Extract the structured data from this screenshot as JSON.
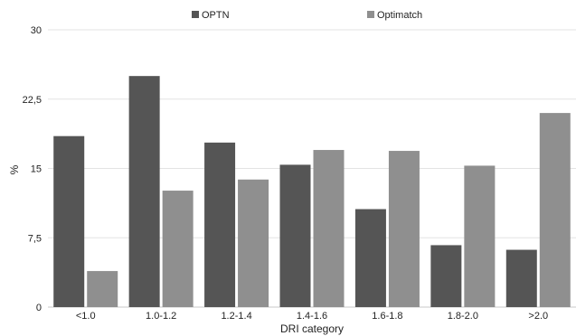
{
  "chart_data": {
    "type": "bar",
    "categories": [
      "<1.0",
      "1.0-1.2",
      "1.2-1.4",
      "1.4-1.6",
      "1.6-1.8",
      "1.8-2.0",
      ">2.0"
    ],
    "series": [
      {
        "name": "OPTN",
        "color": "#555555",
        "values": [
          18.5,
          25.0,
          17.8,
          15.4,
          10.6,
          6.7,
          6.2
        ]
      },
      {
        "name": "Optimatch",
        "color": "#8f8f8f",
        "values": [
          3.9,
          12.6,
          13.8,
          17.0,
          16.9,
          15.3,
          21.0
        ]
      }
    ],
    "xlabel": "DRI category",
    "ylabel": "%",
    "ylim": [
      0,
      30
    ],
    "yticks": [
      0,
      7.5,
      15,
      22.5,
      30
    ],
    "ytick_labels": [
      "0",
      "7,5",
      "15",
      "22,5",
      "30"
    ],
    "grid": true,
    "legend_position": "top-center"
  }
}
